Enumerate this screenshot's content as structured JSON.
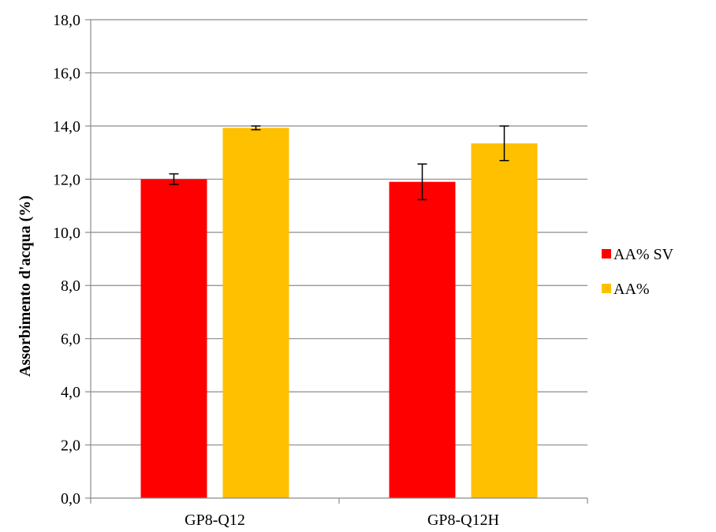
{
  "chart_data": {
    "type": "bar",
    "categories": [
      "GP8-Q12",
      "GP8-Q12H"
    ],
    "series": [
      {
        "name": "AA% SV",
        "color": "#ff0000",
        "values": [
          12.0,
          11.9
        ],
        "error": [
          0.2,
          0.67
        ]
      },
      {
        "name": "AA%",
        "color": "#ffc000",
        "values": [
          13.93,
          13.35
        ],
        "error": [
          0.07,
          0.65
        ]
      }
    ],
    "xlabel": "",
    "ylabel": "Assorbimento d'acqua (%)",
    "ylim": [
      0,
      18
    ],
    "yticks": [
      "0,0",
      "2,0",
      "4,0",
      "6,0",
      "8,0",
      "10,0",
      "12,0",
      "14,0",
      "16,0",
      "18,0"
    ],
    "grid": true,
    "legend_position": "right"
  }
}
